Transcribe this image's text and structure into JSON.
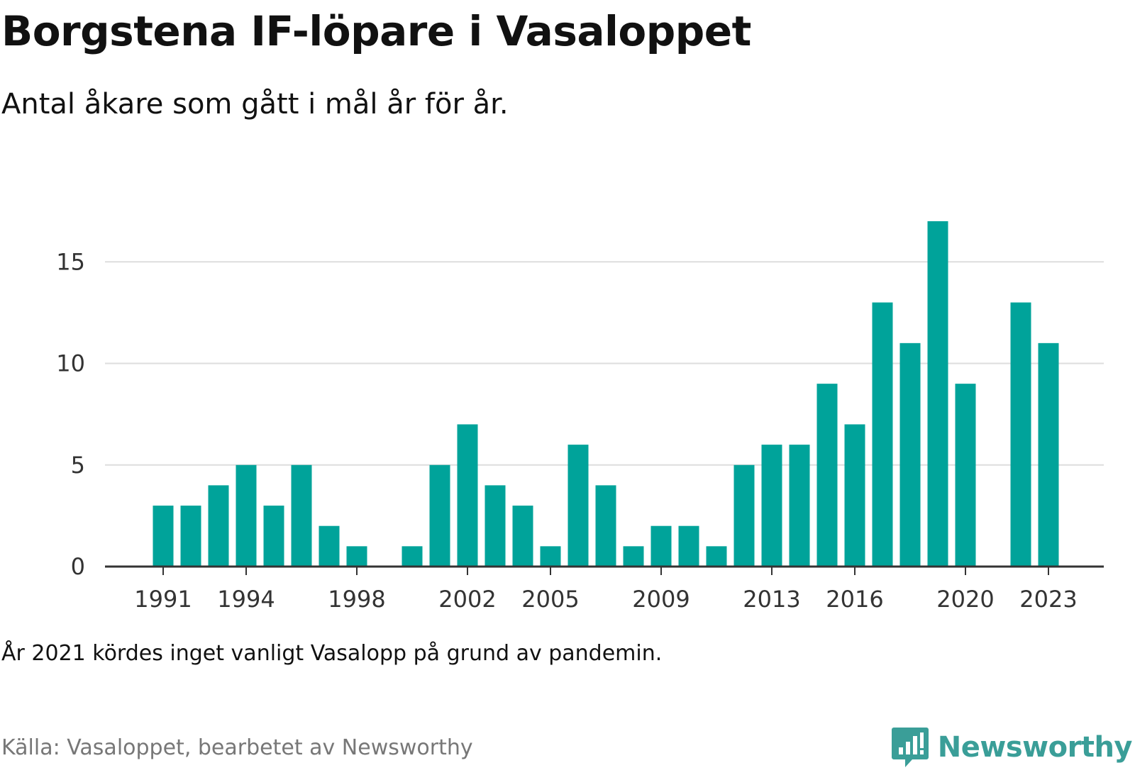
{
  "title": "Borgstena IF-löpare i Vasaloppet",
  "subtitle": "Antal åkare som gått i mål år för år.",
  "note": "År 2021 kördes inget vanligt Vasalopp på grund av pandemin.",
  "source": "Källa: Vasaloppet, bearbetet av Newsworthy",
  "brand": {
    "name": "Newsworthy",
    "icon": "newsworthy-logo-icon",
    "color": "#3a9e98"
  },
  "chart_data": {
    "type": "bar",
    "title": "Borgstena IF-löpare i Vasaloppet",
    "subtitle": "Antal åkare som gått i mål år för år.",
    "xlabel": "",
    "ylabel": "",
    "color": "#00a39a",
    "ylim": [
      0,
      17
    ],
    "yticks": [
      0,
      5,
      10,
      15
    ],
    "xticks": [
      1991,
      1994,
      1998,
      2002,
      2005,
      2009,
      2013,
      2016,
      2020,
      2023
    ],
    "grid": true,
    "categories": [
      1991,
      1992,
      1993,
      1994,
      1995,
      1996,
      1997,
      1998,
      1999,
      2000,
      2001,
      2002,
      2003,
      2004,
      2005,
      2006,
      2007,
      2008,
      2009,
      2010,
      2011,
      2012,
      2013,
      2014,
      2015,
      2016,
      2017,
      2018,
      2019,
      2020,
      2021,
      2022,
      2023
    ],
    "values": [
      3,
      3,
      4,
      5,
      3,
      5,
      2,
      1,
      0,
      1,
      5,
      7,
      4,
      3,
      1,
      6,
      4,
      1,
      2,
      2,
      1,
      5,
      6,
      6,
      9,
      7,
      13,
      11,
      17,
      9,
      0,
      13,
      11
    ]
  }
}
